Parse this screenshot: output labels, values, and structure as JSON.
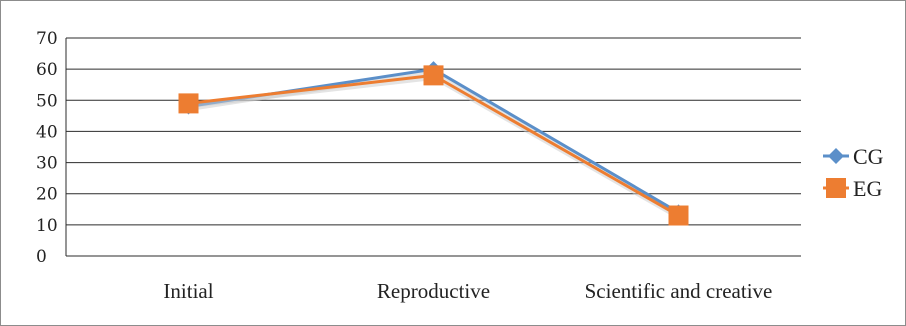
{
  "chart_data": {
    "type": "line",
    "categories": [
      "Initial",
      "Reproductive",
      "Scientific and creative"
    ],
    "series": [
      {
        "name": "CG",
        "values": [
          48,
          60,
          14
        ],
        "color": "#5b8fc9",
        "marker": "diamond"
      },
      {
        "name": "EG",
        "values": [
          49,
          58,
          13
        ],
        "color": "#ed7d31",
        "marker": "square"
      }
    ],
    "ylim": [
      0,
      70
    ],
    "yticks": [
      0,
      10,
      20,
      30,
      40,
      50,
      60,
      70
    ],
    "grid": true,
    "legend": "right"
  }
}
